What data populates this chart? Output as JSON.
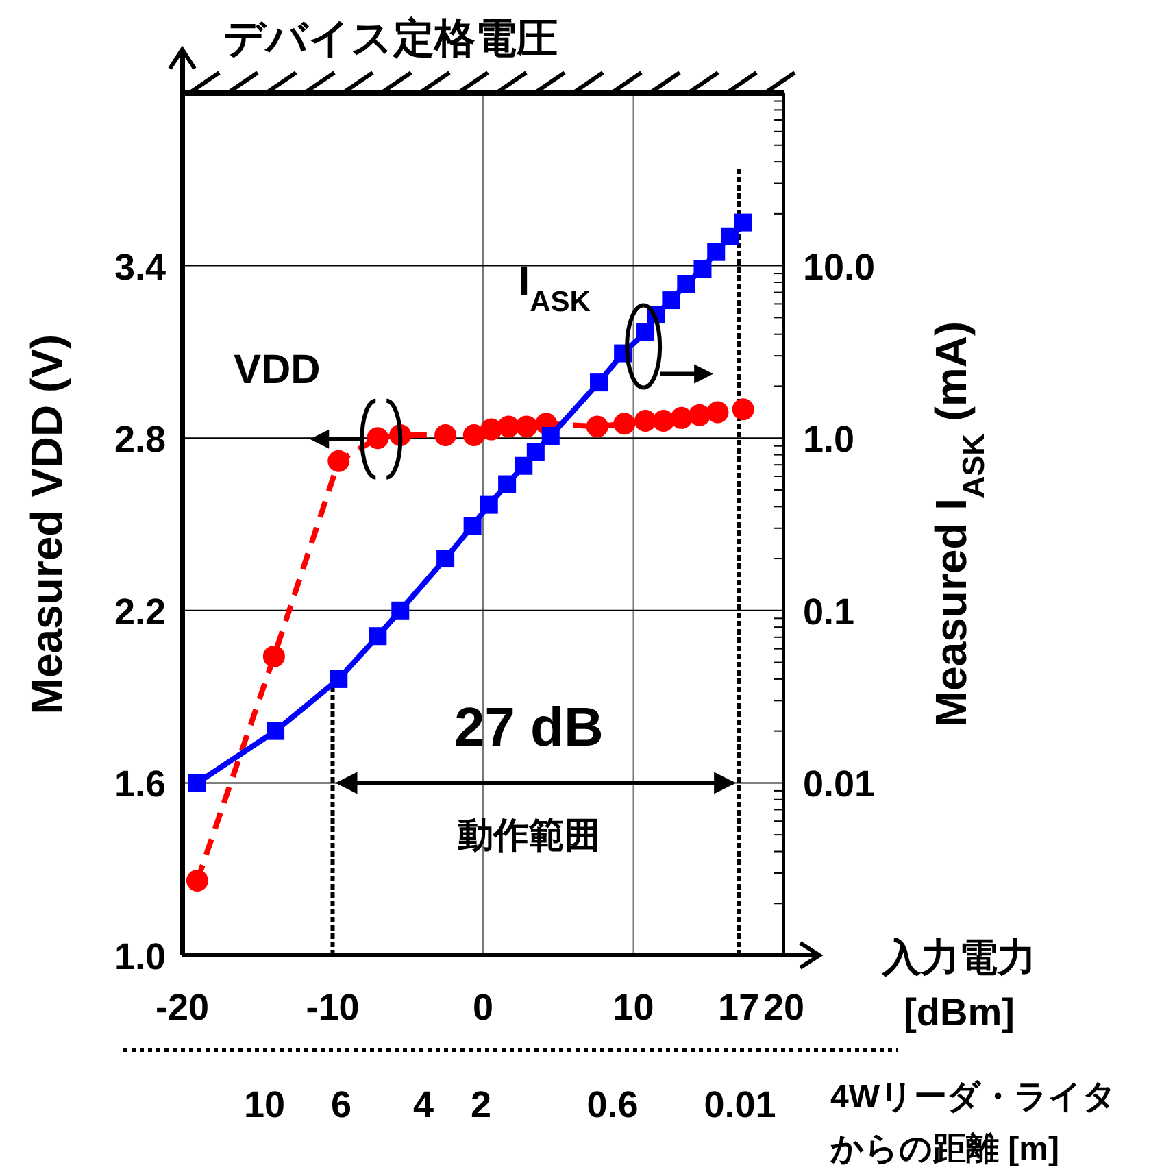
{
  "chart_data": {
    "type": "line",
    "xlabel": "入力電力\n[dBm]",
    "ylabel": "Measured  VDD (V)",
    "y2label": "Measured  I$_{ASK}$ (mA)",
    "xlim": [
      -20,
      20
    ],
    "xticks": [
      -20,
      -10,
      0,
      10,
      17,
      20
    ],
    "ylim": [
      1.0,
      4.0
    ],
    "yticks": [
      {
        "value": 1.0,
        "label": "1.0"
      },
      {
        "value": 1.6,
        "label": "1.6"
      },
      {
        "value": 2.2,
        "label": "2.2"
      },
      {
        "value": 2.8,
        "label": "2.8"
      },
      {
        "value": 3.4,
        "label": "3.4"
      },
      {
        "value": 4.0,
        "label": null
      }
    ],
    "y2lim": [
      0.001,
      100
    ],
    "y2ticks": [
      0.01,
      0.1,
      {
        "value": 1,
        "label": "1.0"
      },
      {
        "value": 10,
        "label": "10.0"
      }
    ],
    "log": "y2",
    "grid": true,
    "series": [
      {
        "name": "VDD",
        "color": "#ff0000",
        "line_style": "dashed",
        "marker": "circle",
        "axis": "y",
        "x": [
          -19.0,
          -13.9,
          -9.6,
          -7.0,
          -5.5,
          -2.5,
          -0.6,
          0.55,
          1.7,
          2.9,
          4.2,
          7.6,
          9.4,
          10.8,
          12.0,
          13.2,
          14.4,
          15.6,
          17.3
        ],
        "values": [
          1.26,
          2.04,
          2.72,
          2.8,
          2.81,
          2.81,
          2.81,
          2.83,
          2.84,
          2.84,
          2.85,
          2.84,
          2.85,
          2.86,
          2.86,
          2.87,
          2.88,
          2.89,
          2.9
        ]
      },
      {
        "name": "I$_{ASK}$",
        "color": "#0000ff",
        "line_style": "solid",
        "marker": "square",
        "axis": "y2",
        "x": [
          -19.0,
          -13.8,
          -9.6,
          -7.0,
          -5.5,
          -2.5,
          -0.7,
          0.4,
          1.6,
          2.7,
          3.5,
          4.5,
          7.7,
          9.3,
          10.8,
          11.5,
          12.5,
          13.5,
          14.6,
          15.5,
          16.4,
          17.3
        ],
        "values": [
          0.01,
          0.02,
          0.04,
          0.071,
          0.1,
          0.2,
          0.31,
          0.41,
          0.54,
          0.69,
          0.83,
          1.03,
          2.1,
          3.1,
          4.1,
          5.2,
          6.3,
          7.8,
          9.6,
          12,
          14.8,
          17.8
        ]
      }
    ],
    "ref_lines": [
      {
        "axis": "y",
        "value": 4.0,
        "label": "デバイス定格電圧",
        "line_style": "solid"
      },
      {
        "axis": "x",
        "value": -10,
        "line_style": "dotted"
      },
      {
        "axis": "x",
        "value": 17,
        "line_style": "dotted"
      }
    ],
    "annotations": [
      "27 dB",
      "動作範囲",
      "10",
      "6",
      "4",
      "2",
      "0.6",
      "0.01",
      "4Wリーダ・ライタ",
      "からの距離 [m]"
    ]
  }
}
